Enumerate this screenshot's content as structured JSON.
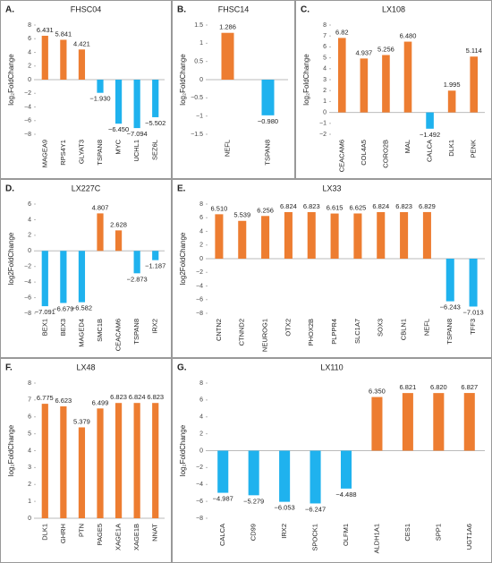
{
  "chart_data": [
    {
      "type": "bar",
      "label": "A.",
      "title": "FHSC04",
      "ylabel": "log₂FoldChange",
      "categories": [
        "MAGEA9",
        "RPS4Y1",
        "GLYAT3",
        "TSPAN8",
        "MYC",
        "UCHL1",
        "SEZ6L"
      ],
      "values": [
        6.431,
        5.841,
        4.421,
        -1.93,
        -6.45,
        -7.094,
        -5.502
      ],
      "value_labels": [
        "6.431",
        "5.841",
        "4.421",
        "−1.930",
        "−6.450",
        "−7.094",
        "−5.502"
      ],
      "ylim": [
        -8,
        8
      ],
      "yticks": [
        {
          "value": -8,
          "label": "−8"
        },
        {
          "value": -6,
          "label": "−6"
        },
        {
          "value": -4,
          "label": "−4"
        },
        {
          "value": -2,
          "label": "−2"
        },
        0,
        2,
        4,
        6,
        8
      ],
      "colors": {
        "positive": "#ED7D31",
        "negative": "#1FB2EE"
      }
    },
    {
      "type": "bar",
      "label": "B.",
      "title": "FHSC14",
      "ylabel": "log₂FoldChange",
      "categories": [
        "NEFL",
        "TSPAN8"
      ],
      "values": [
        1.286,
        -0.98
      ],
      "value_labels": [
        "1.286",
        "−0.980"
      ],
      "ylim": [
        -1.5,
        1.5
      ],
      "yticks": [
        {
          "value": -1.5,
          "label": "−1.5"
        },
        {
          "value": -1,
          "label": "−1"
        },
        {
          "value": -0.5,
          "label": "−0.5"
        },
        0,
        0.5,
        1,
        1.5
      ],
      "colors": {
        "positive": "#ED7D31",
        "negative": "#1FB2EE"
      }
    },
    {
      "type": "bar",
      "label": "C.",
      "title": "LX108",
      "ylabel": "log₂FoldChange",
      "categories": [
        "CEACAM6",
        "COL4A5",
        "CORO2B",
        "MAL",
        "CALCA",
        "DLK1",
        "PENK"
      ],
      "values": [
        6.82,
        4.937,
        5.256,
        6.48,
        -1.492,
        1.995,
        5.114
      ],
      "value_labels": [
        "6.82",
        "4.937",
        "5.256",
        "6.480",
        "−1.492",
        "1.995",
        "5.114"
      ],
      "ylim": [
        -2,
        8
      ],
      "yticks": [
        {
          "value": -2,
          "label": "−2"
        },
        {
          "value": -1,
          "label": "−1"
        },
        0,
        1,
        2,
        3,
        4,
        5,
        6,
        7,
        8
      ],
      "colors": {
        "positive": "#ED7D31",
        "negative": "#1FB2EE"
      }
    },
    {
      "type": "bar",
      "label": "D.",
      "title": "LX227C",
      "ylabel": "log2FoldChange",
      "categories": [
        "BEX1",
        "BEX3",
        "MAGED4",
        "SMC1B",
        "CEACAM6",
        "TSPAN8",
        "IRX2"
      ],
      "values": [
        -7.091,
        -6.679,
        -6.582,
        4.807,
        2.628,
        -2.873,
        -1.187
      ],
      "value_labels": [
        "−7.091",
        "−6.679",
        "−6.582",
        "4.807",
        "2.628",
        "−2.873",
        "−1.187"
      ],
      "ylim": [
        -8,
        6
      ],
      "yticks": [
        {
          "value": -8,
          "label": "−8"
        },
        {
          "value": -6,
          "label": "−6"
        },
        {
          "value": -4,
          "label": "−4"
        },
        {
          "value": -2,
          "label": "−2"
        },
        0,
        2,
        4,
        6
      ],
      "colors": {
        "positive": "#ED7D31",
        "negative": "#1FB2EE"
      }
    },
    {
      "type": "bar",
      "label": "E.",
      "title": "LX33",
      "ylabel": "log2FoldChange",
      "categories": [
        "CNTN2",
        "CTNND2",
        "NEUROG1",
        "OTX2",
        "PHOX2B",
        "PLPPR4",
        "SLC1A7",
        "SOX3",
        "CBLN1",
        "NEFL",
        "TSPAN8",
        "TFF3"
      ],
      "values": [
        6.51,
        5.539,
        6.256,
        6.824,
        6.823,
        6.615,
        6.625,
        6.824,
        6.823,
        6.829,
        -6.243,
        -7.013
      ],
      "value_labels": [
        "6.510",
        "5.539",
        "6.256",
        "6.824",
        "6.823",
        "6.615",
        "6.625",
        "6.824",
        "6.823",
        "6.829",
        "−6.243",
        "−7.013"
      ],
      "ylim": [
        -8,
        8
      ],
      "yticks": [
        {
          "value": -8,
          "label": "−8"
        },
        {
          "value": -6,
          "label": "−6"
        },
        {
          "value": -4,
          "label": "−4"
        },
        {
          "value": -2,
          "label": "−2"
        },
        0,
        2,
        4,
        6,
        8
      ],
      "colors": {
        "positive": "#ED7D31",
        "negative": "#1FB2EE"
      }
    },
    {
      "type": "bar",
      "label": "F.",
      "title": "LX48",
      "ylabel": "log₂FoldChange",
      "categories": [
        "DLK1",
        "GHRH",
        "PTN",
        "PAGE5",
        "XAGE1A",
        "XAGE1B",
        "NNAT"
      ],
      "values": [
        6.775,
        6.623,
        5.379,
        6.499,
        6.823,
        6.824,
        6.823
      ],
      "value_labels": [
        "6.775",
        "6.623",
        "5.379",
        "6.499",
        "6.823",
        "6.824",
        "6.823"
      ],
      "ylim": [
        0,
        8
      ],
      "yticks": [
        0,
        1,
        2,
        3,
        4,
        5,
        6,
        7,
        8
      ],
      "colors": {
        "positive": "#ED7D31",
        "negative": "#1FB2EE"
      }
    },
    {
      "type": "bar",
      "label": "G.",
      "title": "LX110",
      "ylabel": "log₂FoldChange",
      "categories": [
        "CALCA",
        "CD99",
        "IRX2",
        "SPOCK1",
        "OLFM1",
        "ALDH1A1",
        "CES1",
        "SPP1",
        "UGT1A6"
      ],
      "values": [
        -4.987,
        -5.279,
        -6.053,
        -6.247,
        -4.488,
        6.35,
        6.821,
        6.82,
        6.827
      ],
      "value_labels": [
        "−4.987",
        "−5.279",
        "−6.053",
        "−6.247",
        "−4.488",
        "6.350",
        "6.821",
        "6.820",
        "6.827"
      ],
      "ylim": [
        -8,
        8
      ],
      "yticks": [
        {
          "value": -8,
          "label": "−8"
        },
        {
          "value": -6,
          "label": "−6"
        },
        {
          "value": -4,
          "label": "−4"
        },
        {
          "value": -2,
          "label": "−2"
        },
        0,
        2,
        4,
        6,
        8
      ],
      "colors": {
        "positive": "#ED7D31",
        "negative": "#1FB2EE"
      }
    }
  ]
}
